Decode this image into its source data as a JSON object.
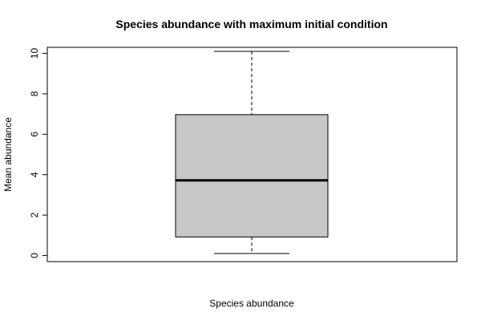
{
  "chart_data": {
    "type": "box",
    "title": "Species abundance with maximum initial condition",
    "xlabel": "Species abundance",
    "ylabel": "Mean abundance",
    "ylim": [
      -0.3,
      10.3
    ],
    "yticks": [
      0,
      2,
      4,
      6,
      8,
      10
    ],
    "ytick_labels": [
      "0",
      "2",
      "4",
      "6",
      "8",
      "10"
    ],
    "grid": false,
    "box": {
      "min": 0.1,
      "q1": 0.92,
      "median": 3.72,
      "q3": 6.97,
      "max": 10.1
    },
    "colors": {
      "box_fill": "#c8c8c8",
      "stroke": "#000000"
    }
  }
}
